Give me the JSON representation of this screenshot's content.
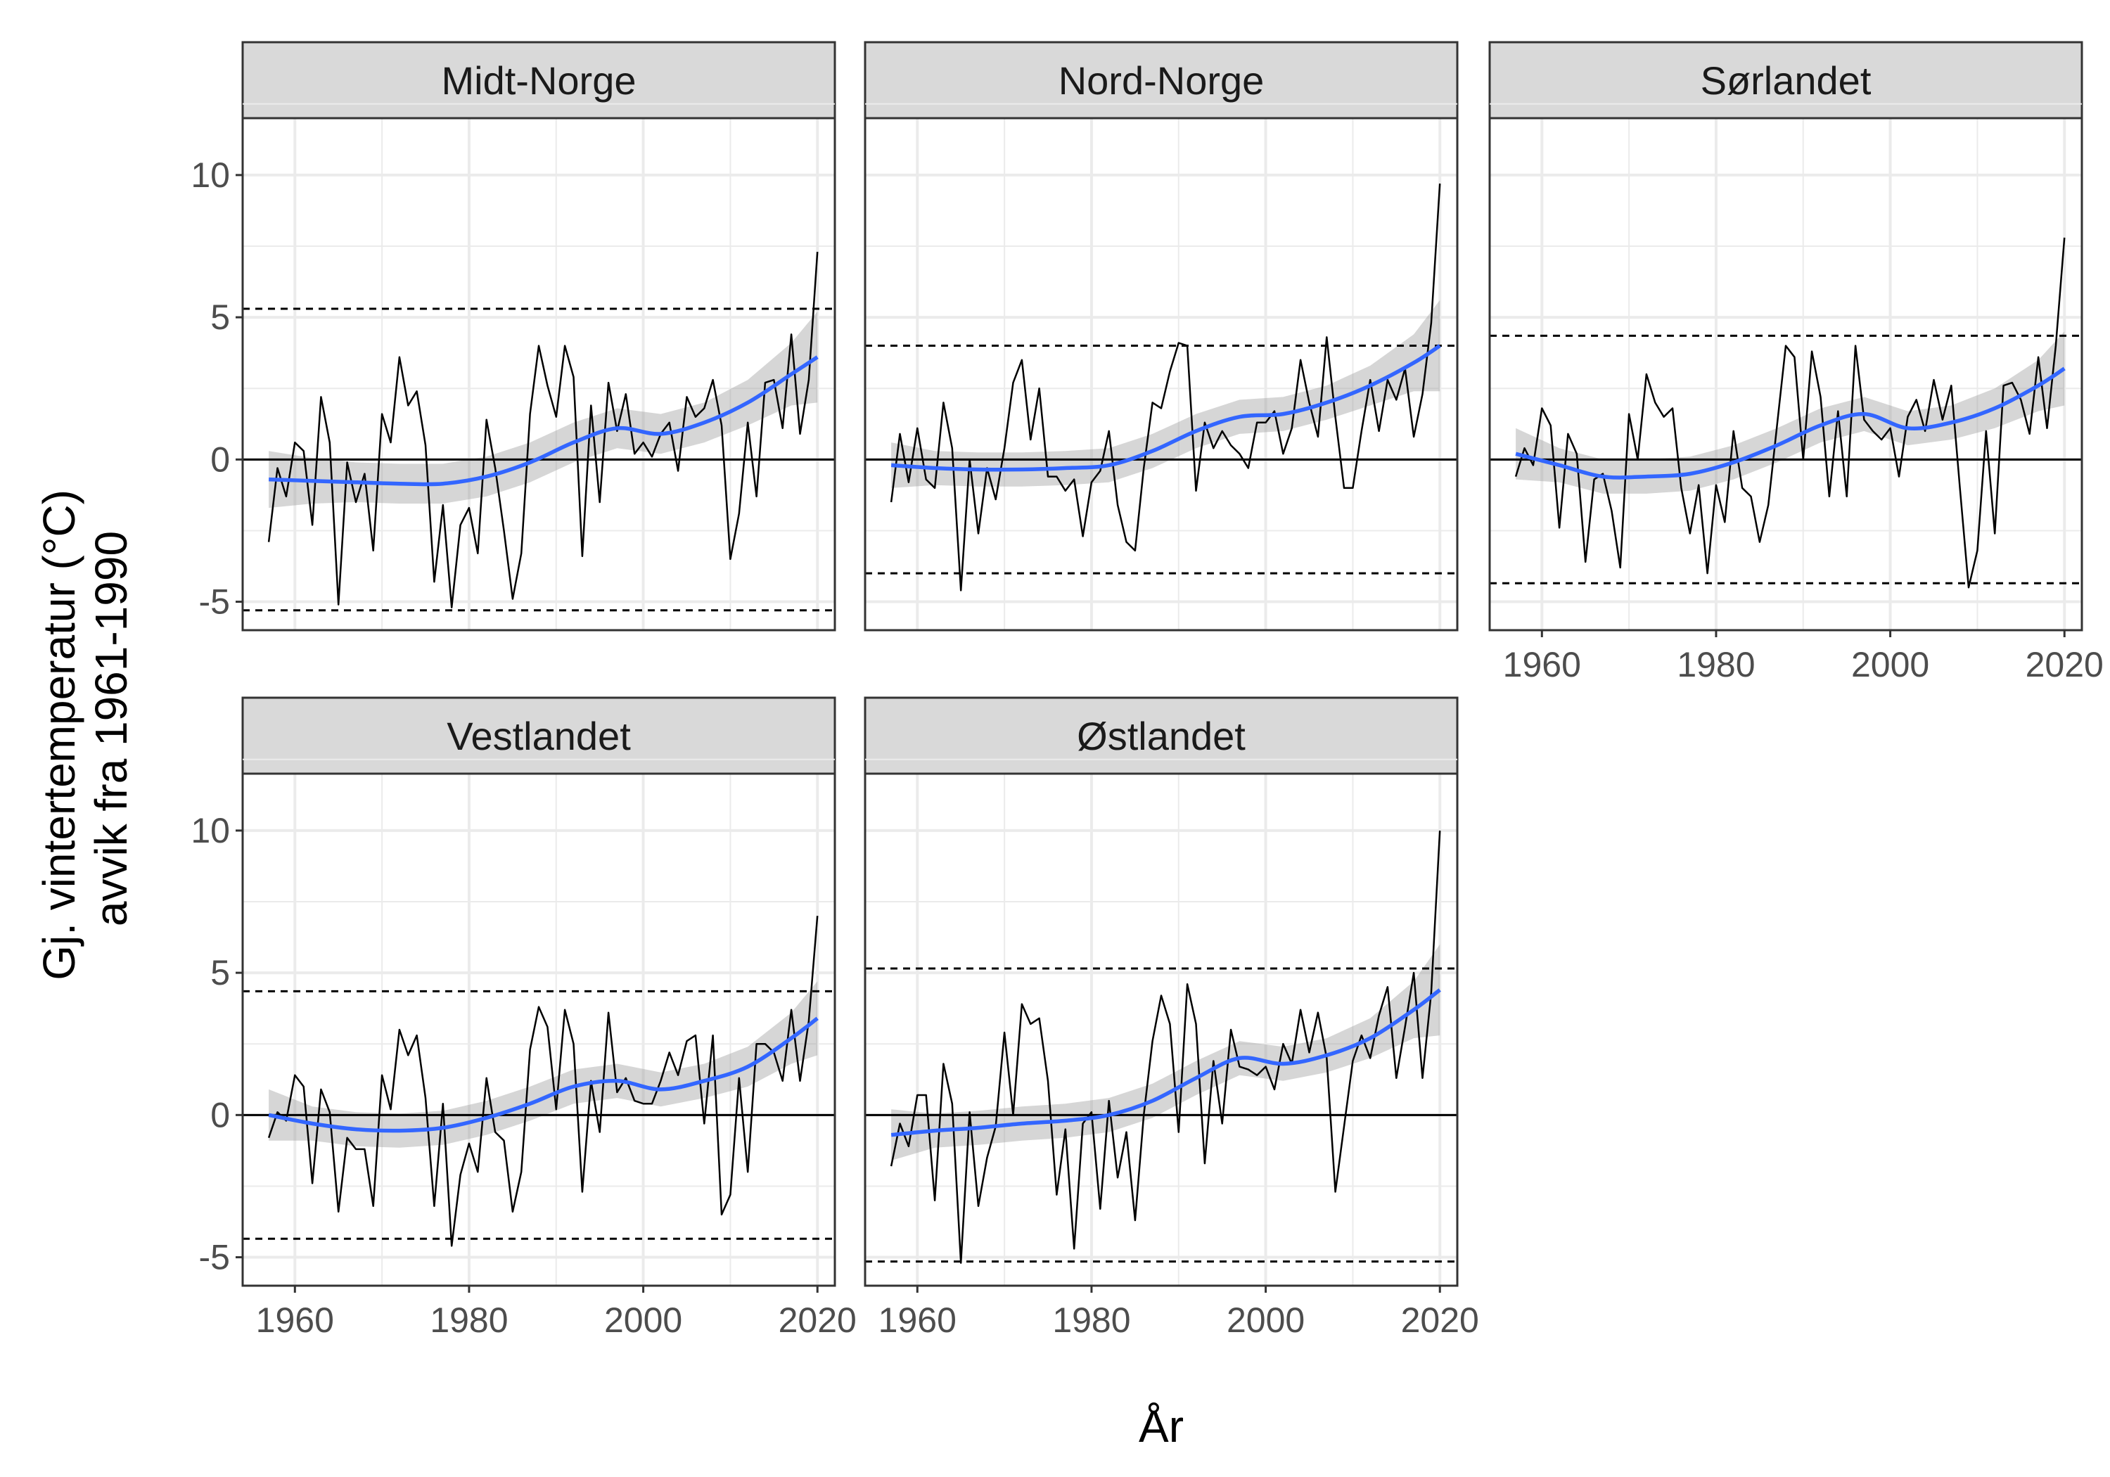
{
  "chart_data": {
    "type": "line",
    "layout": "facet-grid-2x3",
    "xlabel": "År",
    "ylabel_lines": [
      "Gj. vintertemperatur (°C)",
      "avvik fra 1961-1990"
    ],
    "xlim": [
      1954,
      2022
    ],
    "ylim": [
      -6,
      10
    ],
    "x_ticks": [
      1960,
      1980,
      2000,
      2020
    ],
    "y_ticks": [
      -5,
      0,
      5,
      10
    ],
    "y_tick_labels": [
      "-5",
      "0",
      "5",
      "10"
    ],
    "grid": true,
    "colors": {
      "observed": "#000000",
      "smooth": "#3366FF",
      "ribbon": "#999999",
      "strip": "#d9d9d9",
      "grid": "#ebebeb",
      "border": "#333333"
    },
    "years": [
      1957,
      1958,
      1959,
      1960,
      1961,
      1962,
      1963,
      1964,
      1965,
      1966,
      1967,
      1968,
      1969,
      1970,
      1971,
      1972,
      1973,
      1974,
      1975,
      1976,
      1977,
      1978,
      1979,
      1980,
      1981,
      1982,
      1983,
      1984,
      1985,
      1986,
      1987,
      1988,
      1989,
      1990,
      1991,
      1992,
      1993,
      1994,
      1995,
      1996,
      1997,
      1998,
      1999,
      2000,
      2001,
      2002,
      2003,
      2004,
      2005,
      2006,
      2007,
      2008,
      2009,
      2010,
      2011,
      2012,
      2013,
      2014,
      2015,
      2016,
      2017,
      2018,
      2019,
      2020
    ],
    "smooth_x": [
      1957,
      1962,
      1967,
      1972,
      1977,
      1982,
      1987,
      1992,
      1997,
      2002,
      2007,
      2012,
      2017,
      2020
    ],
    "panels": [
      {
        "name": "Midt-Norge",
        "threshold": 5.3,
        "values": [
          -2.9,
          -0.3,
          -1.3,
          0.6,
          0.3,
          -2.3,
          2.2,
          0.6,
          -5.1,
          -0.1,
          -1.5,
          -0.5,
          -3.2,
          1.6,
          0.6,
          3.6,
          1.9,
          2.4,
          0.5,
          -4.3,
          -1.6,
          -5.2,
          -2.3,
          -1.7,
          -3.3,
          1.4,
          -0.3,
          -2.5,
          -4.9,
          -3.3,
          1.6,
          4.0,
          2.6,
          1.5,
          4.0,
          2.9,
          -3.4,
          1.9,
          -1.5,
          2.7,
          1.0,
          2.3,
          0.2,
          0.6,
          0.1,
          0.9,
          1.3,
          -0.4,
          2.2,
          1.5,
          1.8,
          2.8,
          1.2,
          -3.5,
          -1.9,
          1.3,
          -1.3,
          2.7,
          2.8,
          1.1,
          4.4,
          0.9,
          2.8,
          7.3
        ],
        "smooth": [
          -0.7,
          -0.75,
          -0.8,
          -0.85,
          -0.85,
          -0.6,
          -0.1,
          0.6,
          1.1,
          0.9,
          1.3,
          2.0,
          3.0,
          3.6
        ],
        "ribbon_half": [
          1.0,
          0.8,
          0.7,
          0.7,
          0.7,
          0.7,
          0.7,
          0.7,
          0.7,
          0.7,
          0.7,
          0.8,
          1.1,
          1.6
        ]
      },
      {
        "name": "Nord-Norge",
        "threshold": 4.0,
        "values": [
          -1.5,
          0.9,
          -0.8,
          1.1,
          -0.7,
          -1.0,
          2.0,
          0.4,
          -4.6,
          0.0,
          -2.6,
          -0.3,
          -1.4,
          0.4,
          2.7,
          3.5,
          0.7,
          2.5,
          -0.6,
          -0.6,
          -1.1,
          -0.7,
          -2.7,
          -0.8,
          -0.4,
          1.0,
          -1.6,
          -2.9,
          -3.2,
          -0.3,
          2.0,
          1.8,
          3.1,
          4.1,
          4.0,
          -1.1,
          1.3,
          0.4,
          1.0,
          0.5,
          0.2,
          -0.3,
          1.3,
          1.3,
          1.7,
          0.2,
          1.1,
          3.5,
          2.0,
          0.8,
          4.3,
          1.5,
          -1.0,
          -1.0,
          1.0,
          2.8,
          1.0,
          2.8,
          2.1,
          3.2,
          0.8,
          2.3,
          4.8,
          9.7
        ],
        "smooth": [
          -0.2,
          -0.3,
          -0.35,
          -0.35,
          -0.3,
          -0.2,
          0.3,
          1.0,
          1.5,
          1.6,
          2.0,
          2.6,
          3.4,
          4.0
        ],
        "ribbon_half": [
          0.8,
          0.6,
          0.6,
          0.6,
          0.6,
          0.6,
          0.6,
          0.6,
          0.6,
          0.6,
          0.6,
          0.7,
          1.0,
          1.6
        ]
      },
      {
        "name": "Sørlandet",
        "threshold": 4.35,
        "values": [
          -0.6,
          0.4,
          -0.2,
          1.8,
          1.2,
          -2.4,
          0.9,
          0.2,
          -3.6,
          -0.7,
          -0.5,
          -1.8,
          -3.8,
          1.6,
          0.0,
          3.0,
          2.0,
          1.5,
          1.8,
          -1.0,
          -2.6,
          -0.9,
          -4.0,
          -0.9,
          -2.2,
          1.0,
          -1.0,
          -1.3,
          -2.9,
          -1.6,
          1.2,
          4.0,
          3.6,
          0.0,
          3.8,
          2.2,
          -1.3,
          1.7,
          -1.3,
          4.0,
          1.4,
          1.0,
          0.7,
          1.1,
          -0.6,
          1.5,
          2.1,
          1.0,
          2.8,
          1.4,
          2.6,
          -1.0,
          -4.5,
          -3.2,
          1.0,
          -2.6,
          2.6,
          2.7,
          2.1,
          0.9,
          3.6,
          1.1,
          4.0,
          7.8
        ],
        "smooth": [
          0.2,
          -0.2,
          -0.6,
          -0.6,
          -0.5,
          -0.1,
          0.5,
          1.2,
          1.6,
          1.1,
          1.3,
          1.8,
          2.6,
          3.2
        ],
        "ribbon_half": [
          0.9,
          0.6,
          0.6,
          0.6,
          0.6,
          0.6,
          0.6,
          0.6,
          0.6,
          0.6,
          0.6,
          0.7,
          0.9,
          1.3
        ]
      },
      {
        "name": "Vestlandet",
        "threshold": 4.35,
        "values": [
          -0.8,
          0.1,
          -0.2,
          1.4,
          1.0,
          -2.4,
          0.9,
          0.1,
          -3.4,
          -0.8,
          -1.2,
          -1.2,
          -3.2,
          1.4,
          0.2,
          3.0,
          2.1,
          2.8,
          0.6,
          -3.2,
          0.4,
          -4.6,
          -2.1,
          -1.0,
          -2.0,
          1.3,
          -0.6,
          -0.9,
          -3.4,
          -2.0,
          2.3,
          3.8,
          3.1,
          0.2,
          3.7,
          2.5,
          -2.7,
          1.2,
          -0.6,
          3.6,
          0.8,
          1.3,
          0.5,
          0.4,
          0.4,
          1.2,
          2.2,
          1.4,
          2.6,
          2.8,
          -0.3,
          2.8,
          -3.5,
          -2.8,
          1.3,
          -2.0,
          2.5,
          2.5,
          2.2,
          1.2,
          3.7,
          1.2,
          3.3,
          7.0
        ],
        "smooth": [
          0.0,
          -0.3,
          -0.5,
          -0.55,
          -0.45,
          -0.1,
          0.4,
          1.0,
          1.2,
          0.9,
          1.2,
          1.7,
          2.7,
          3.4
        ],
        "ribbon_half": [
          0.9,
          0.6,
          0.6,
          0.6,
          0.6,
          0.6,
          0.6,
          0.6,
          0.6,
          0.6,
          0.6,
          0.7,
          0.9,
          1.3
        ]
      },
      {
        "name": "Østlandet",
        "threshold": 5.15,
        "values": [
          -1.8,
          -0.3,
          -1.1,
          0.7,
          0.7,
          -3.0,
          1.8,
          0.4,
          -5.2,
          0.1,
          -3.2,
          -1.5,
          -0.4,
          2.9,
          0.0,
          3.9,
          3.2,
          3.4,
          1.2,
          -2.8,
          -0.5,
          -4.7,
          -0.3,
          0.1,
          -3.3,
          0.5,
          -2.2,
          -0.6,
          -3.7,
          0.0,
          2.6,
          4.2,
          3.2,
          -0.6,
          4.6,
          3.2,
          -1.7,
          1.9,
          -0.3,
          3.0,
          1.7,
          1.6,
          1.4,
          1.7,
          0.9,
          2.5,
          1.8,
          3.7,
          2.2,
          3.6,
          2.0,
          -2.7,
          -0.4,
          1.9,
          2.8,
          2.0,
          3.5,
          4.5,
          1.3,
          3.1,
          5.0,
          1.3,
          4.3,
          10.0
        ],
        "smooth": [
          -0.7,
          -0.55,
          -0.45,
          -0.3,
          -0.2,
          0.0,
          0.5,
          1.3,
          2.0,
          1.8,
          2.1,
          2.7,
          3.7,
          4.4
        ],
        "ribbon_half": [
          0.9,
          0.6,
          0.6,
          0.6,
          0.6,
          0.6,
          0.6,
          0.6,
          0.6,
          0.6,
          0.6,
          0.7,
          1.0,
          1.6
        ]
      }
    ]
  }
}
